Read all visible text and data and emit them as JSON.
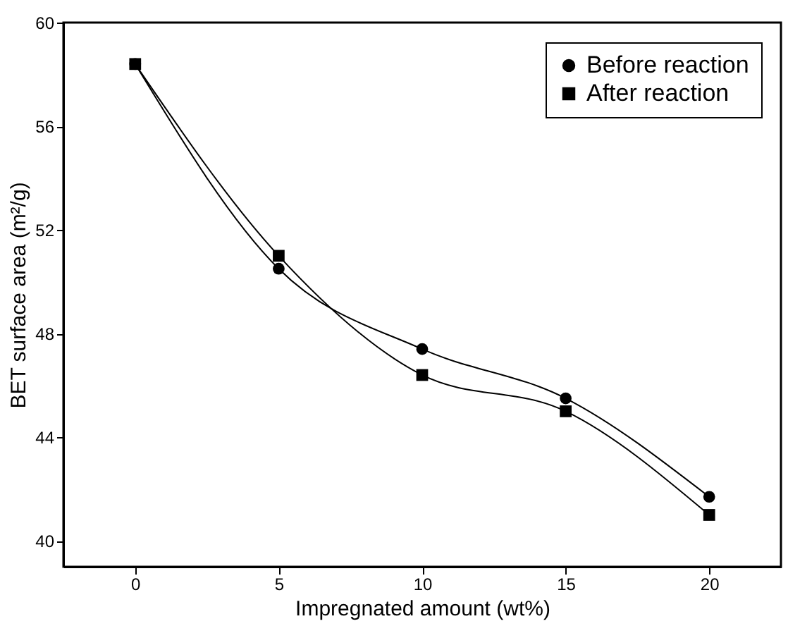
{
  "chart_data": {
    "type": "line",
    "xlabel": "Impregnated amount (wt%)",
    "ylabel": "BET surface area (m²/g)",
    "x": [
      0,
      5,
      10,
      15,
      20
    ],
    "series": [
      {
        "name": "Before reaction",
        "color": "#000000",
        "marker": "circle",
        "values": [
          58.4,
          50.5,
          47.4,
          45.5,
          41.7
        ]
      },
      {
        "name": "After reaction",
        "color": "#000000",
        "marker": "square",
        "values": [
          58.4,
          51.0,
          46.4,
          45.0,
          41.0
        ]
      }
    ],
    "xlim": [
      -2.5,
      22.5
    ],
    "xticks": [
      0,
      5,
      10,
      15,
      20
    ],
    "ylim": [
      39,
      60
    ],
    "yticks": [
      40,
      44,
      48,
      52,
      56,
      60
    ],
    "grid": false,
    "legend": "top right",
    "line_style": "solid"
  }
}
